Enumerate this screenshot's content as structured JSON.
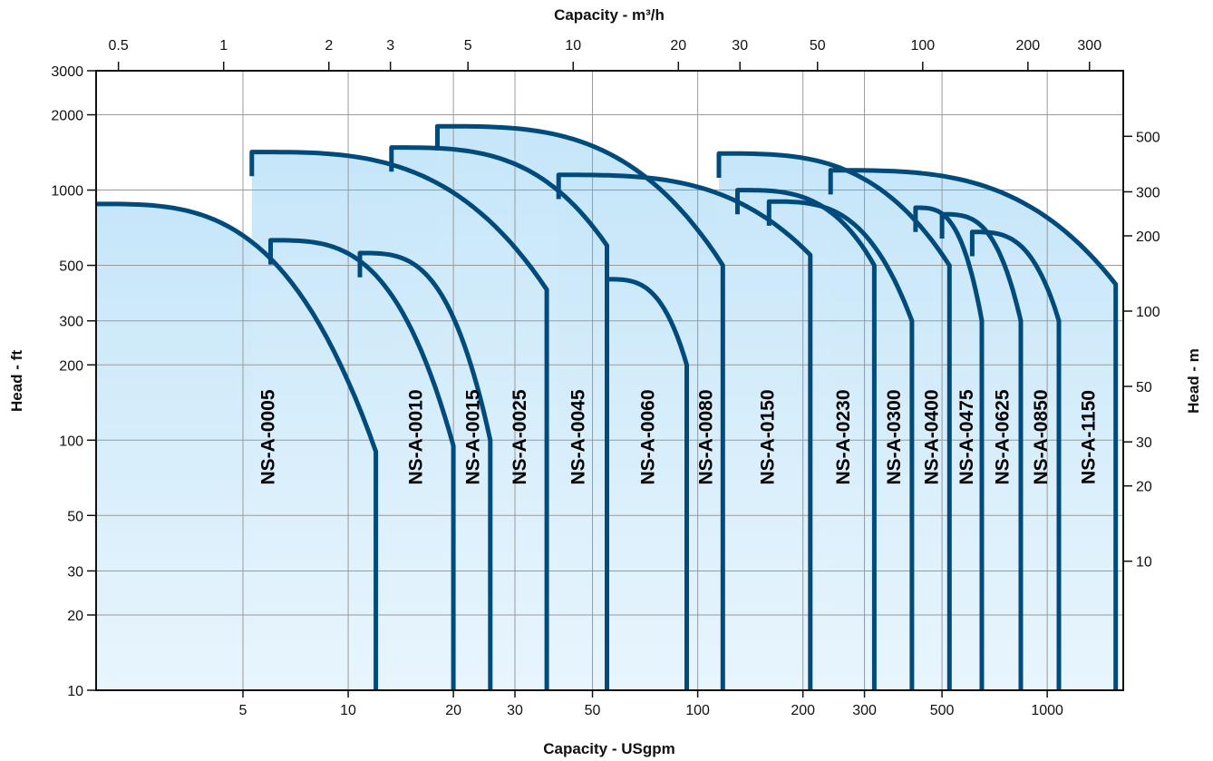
{
  "chart_data": {
    "type": "area",
    "title": "",
    "xlabel": "Capacity - USgpm",
    "ylabel": "Head - ft",
    "x2label": "Capacity - m³/h",
    "y2label": "Head - m",
    "x_scale": "log",
    "y_scale": "log",
    "xlim": [
      1.9,
      1650
    ],
    "ylim": [
      10,
      3000
    ],
    "x_ticks": [
      5,
      10,
      20,
      30,
      50,
      100,
      200,
      300,
      500,
      1000
    ],
    "y_ticks": [
      10,
      20,
      30,
      50,
      100,
      200,
      300,
      500,
      1000,
      2000,
      3000
    ],
    "x2_ticks": [
      0.5,
      1,
      2,
      3,
      5,
      10,
      20,
      30,
      50,
      100,
      200,
      300
    ],
    "y2_ticks": [
      10,
      20,
      30,
      50,
      100,
      200,
      300,
      500
    ],
    "grid": true,
    "colors": {
      "curve": "#004b7c",
      "fill_top": "#c6e6f9",
      "fill_bottom": "#e8f5fd",
      "grid": "#9a9a9a",
      "axis": "#111111"
    },
    "series": [
      {
        "name": "NS-A-0005",
        "q_min": 1.9,
        "q_max": 12.0,
        "h_start": 880,
        "h_knee": 90
      },
      {
        "name": "NS-A-0010",
        "q_min": 6.0,
        "q_max": 20.0,
        "h_start": 630,
        "h_knee": 95
      },
      {
        "name": "NS-A-0015",
        "q_min": 10.8,
        "q_max": 25.5,
        "h_start": 560,
        "h_knee": 100
      },
      {
        "name": "NS-A-0025",
        "q_min": 5.3,
        "q_max": 37.0,
        "h_start": 1420,
        "h_knee": 400
      },
      {
        "name": "NS-A-0045",
        "q_min": 13.3,
        "q_max": 55.0,
        "h_start": 1480,
        "h_knee": 600
      },
      {
        "name": "NS-A-0060",
        "q_min": 55.0,
        "q_max": 93.0,
        "h_start": 440,
        "h_knee": 200
      },
      {
        "name": "NS-A-0080",
        "q_min": 18.0,
        "q_max": 118.0,
        "h_start": 1800,
        "h_knee": 500
      },
      {
        "name": "NS-A-0150",
        "q_min": 40.0,
        "q_max": 210.0,
        "h_start": 1150,
        "h_knee": 550
      },
      {
        "name": "NS-A-0230",
        "q_min": 130.0,
        "q_max": 320.0,
        "h_start": 1000,
        "h_knee": 500
      },
      {
        "name": "NS-A-0300",
        "q_min": 160.0,
        "q_max": 410.0,
        "h_start": 900,
        "h_knee": 300
      },
      {
        "name": "NS-A-0400",
        "q_min": 115.0,
        "q_max": 525.0,
        "h_start": 1400,
        "h_knee": 500
      },
      {
        "name": "NS-A-0475",
        "q_min": 420.0,
        "q_max": 650.0,
        "h_start": 850,
        "h_knee": 300
      },
      {
        "name": "NS-A-0625",
        "q_min": 500.0,
        "q_max": 840.0,
        "h_start": 800,
        "h_knee": 300
      },
      {
        "name": "NS-A-0850",
        "q_min": 610.0,
        "q_max": 1080.0,
        "h_start": 680,
        "h_knee": 300
      },
      {
        "name": "NS-A-1150",
        "q_min": 240.0,
        "q_max": 1570.0,
        "h_start": 1200,
        "h_knee": 420
      }
    ]
  }
}
